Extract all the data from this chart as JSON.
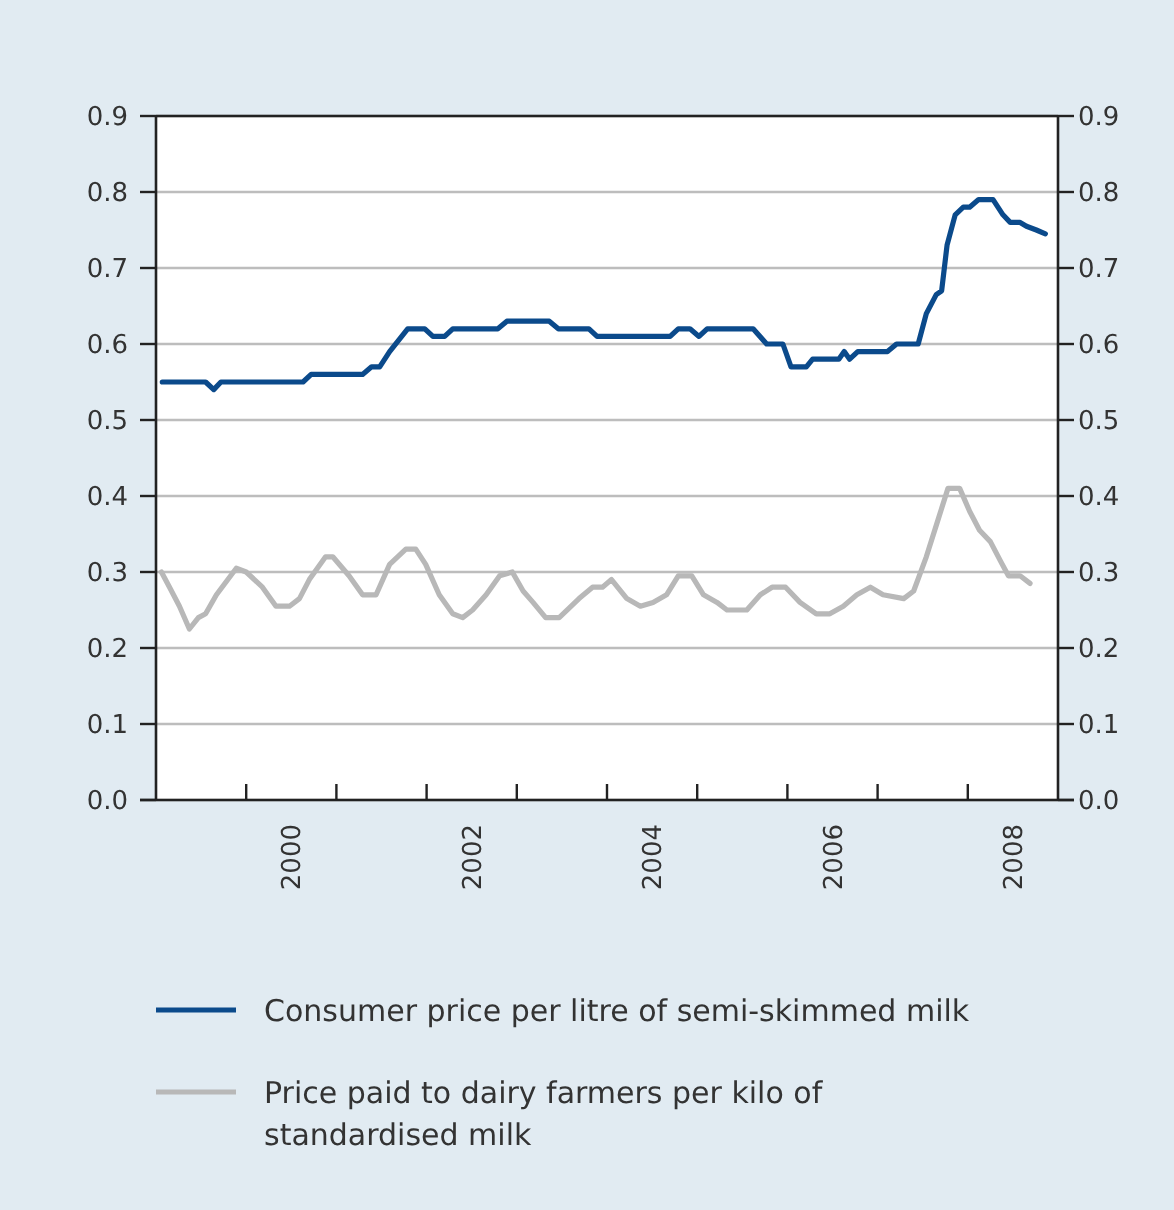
{
  "chart_data": {
    "type": "line",
    "xlim": [
      1999,
      2009
    ],
    "xticks": [
      {
        "value": 2000,
        "label": null
      },
      {
        "value": 2001,
        "label": null
      },
      {
        "value": 2002,
        "label": null
      },
      {
        "value": 2003,
        "label": null
      },
      {
        "value": 2004,
        "label": null
      },
      {
        "value": 2005,
        "label": null
      },
      {
        "value": 2006,
        "label": null
      },
      {
        "value": 2007,
        "label": null
      },
      {
        "value": 2008,
        "label": null
      },
      {
        "value": 2000.5,
        "label": "2000"
      },
      {
        "value": 2002.5,
        "label": "2002"
      },
      {
        "value": 2004.5,
        "label": "2004"
      },
      {
        "value": 2006.5,
        "label": "2006"
      },
      {
        "value": 2008.5,
        "label": "2008"
      }
    ],
    "ylim": [
      0,
      0.9
    ],
    "yticks": [
      {
        "value": 0,
        "label": "0.0"
      },
      0.1,
      0.2,
      0.3,
      0.4,
      0.5,
      0.6,
      0.7,
      0.8,
      0.9
    ],
    "y2lim": [
      0,
      0.9
    ],
    "y2ticks": [
      {
        "value": 0,
        "label": "0.0"
      },
      0.1,
      0.2,
      0.3,
      0.4,
      0.5,
      0.6,
      0.7,
      0.8,
      0.9
    ],
    "grid": "y",
    "legend": "bottom",
    "series": [
      {
        "name": "Consumer price per litre of semi-skimmed milk",
        "color": "#0b4a8b",
        "x": [
          1999.07,
          1999.55,
          1999.64,
          1999.72,
          2000.63,
          2000.72,
          2001.29,
          2001.39,
          2001.48,
          2001.59,
          2001.79,
          2001.98,
          2002.07,
          2002.2,
          2002.29,
          2002.79,
          2002.89,
          2003.36,
          2003.46,
          2003.8,
          2003.89,
          2004.7,
          2004.79,
          2004.92,
          2005.02,
          2005.11,
          2005.62,
          2005.77,
          2005.95,
          2006.04,
          2006.21,
          2006.28,
          2006.57,
          2006.63,
          2006.69,
          2006.78,
          2007.11,
          2007.21,
          2007.45,
          2007.54,
          2007.65,
          2007.71,
          2007.77,
          2007.86,
          2007.95,
          2008.02,
          2008.12,
          2008.28,
          2008.39,
          2008.47,
          2008.58,
          2008.65,
          2008.76,
          2008.86
        ],
        "values": [
          0.55,
          0.55,
          0.54,
          0.55,
          0.55,
          0.56,
          0.56,
          0.57,
          0.57,
          0.59,
          0.62,
          0.62,
          0.61,
          0.61,
          0.62,
          0.62,
          0.63,
          0.63,
          0.62,
          0.62,
          0.61,
          0.61,
          0.62,
          0.62,
          0.61,
          0.62,
          0.62,
          0.6,
          0.6,
          0.57,
          0.57,
          0.58,
          0.58,
          0.59,
          0.58,
          0.59,
          0.59,
          0.6,
          0.6,
          0.64,
          0.665,
          0.67,
          0.73,
          0.77,
          0.78,
          0.78,
          0.79,
          0.79,
          0.77,
          0.76,
          0.76,
          0.755,
          0.75,
          0.745
        ]
      },
      {
        "name": "Price paid to dairy farmers per kilo of standardised milk",
        "color": "#b8b8b8",
        "x": [
          1999.06,
          1999.15,
          1999.26,
          1999.37,
          1999.47,
          1999.55,
          1999.67,
          1999.89,
          2000.0,
          2000.18,
          2000.33,
          2000.48,
          2000.59,
          2000.7,
          2000.88,
          2000.96,
          2001.14,
          2001.29,
          2001.44,
          2001.59,
          2001.77,
          2001.88,
          2001.99,
          2002.14,
          2002.29,
          2002.4,
          2002.51,
          2002.66,
          2002.81,
          2002.95,
          2003.07,
          2003.18,
          2003.32,
          2003.47,
          2003.69,
          2003.84,
          2003.95,
          2004.05,
          2004.22,
          2004.37,
          2004.51,
          2004.66,
          2004.79,
          2004.94,
          2005.07,
          2005.22,
          2005.33,
          2005.55,
          2005.7,
          2005.83,
          2005.98,
          2006.14,
          2006.32,
          2006.47,
          2006.62,
          2006.77,
          2006.92,
          2007.06,
          2007.29,
          2007.4,
          2007.54,
          2007.66,
          2007.78,
          2007.91,
          2008.02,
          2008.13,
          2008.25,
          2008.36,
          2008.45,
          2008.58,
          2008.69
        ],
        "values": [
          0.3,
          0.28,
          0.255,
          0.225,
          0.24,
          0.245,
          0.27,
          0.305,
          0.3,
          0.28,
          0.255,
          0.255,
          0.265,
          0.29,
          0.32,
          0.32,
          0.295,
          0.27,
          0.27,
          0.31,
          0.33,
          0.33,
          0.31,
          0.27,
          0.245,
          0.24,
          0.25,
          0.27,
          0.295,
          0.3,
          0.275,
          0.26,
          0.24,
          0.24,
          0.265,
          0.28,
          0.28,
          0.29,
          0.265,
          0.255,
          0.26,
          0.27,
          0.295,
          0.295,
          0.27,
          0.26,
          0.25,
          0.25,
          0.27,
          0.28,
          0.28,
          0.26,
          0.245,
          0.245,
          0.255,
          0.27,
          0.28,
          0.27,
          0.265,
          0.275,
          0.32,
          0.365,
          0.41,
          0.41,
          0.38,
          0.355,
          0.34,
          0.315,
          0.295,
          0.295,
          0.285
        ]
      }
    ]
  }
}
